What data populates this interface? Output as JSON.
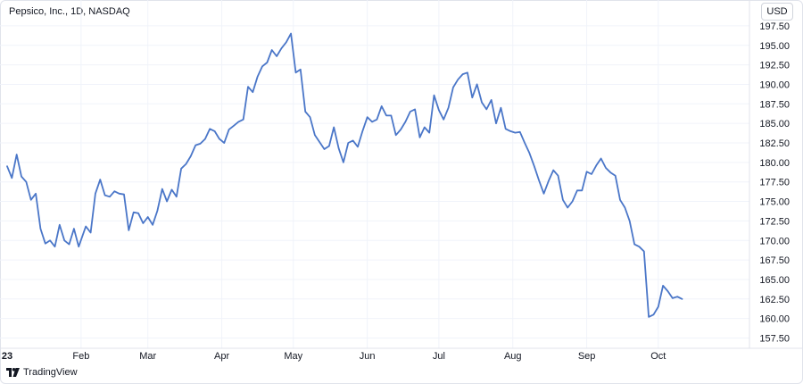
{
  "header": {
    "title": "Pepsico, Inc., 1D, NASDAQ",
    "currency": "USD"
  },
  "footer": {
    "brand": "TradingView",
    "logo_icon": "tradingview-logo-icon"
  },
  "colors": {
    "line": "#4a76c8",
    "grid": "#f0f3fa",
    "axis_text": "#131722",
    "border": "#e0e3eb"
  },
  "chart_data": {
    "type": "line",
    "title": "",
    "xlabel": "",
    "ylabel": "",
    "ylim": [
      156.5,
      198.5
    ],
    "y_ticks": [
      157.5,
      160,
      162.5,
      165,
      167.5,
      170,
      172.5,
      175,
      177.5,
      180,
      182.5,
      185,
      187.5,
      190,
      192.5,
      195,
      197.5
    ],
    "y_tick_labels": [
      "157.50",
      "160.00",
      "162.50",
      "165.00",
      "167.50",
      "170.00",
      "172.50",
      "175.00",
      "177.50",
      "180.00",
      "182.50",
      "185.00",
      "187.50",
      "190.00",
      "192.50",
      "195.00",
      "197.50"
    ],
    "x_ticks": [
      {
        "label": "23",
        "date": "2023-01-01",
        "bold": true
      },
      {
        "label": "Feb",
        "date": "2023-02-01",
        "bold": false
      },
      {
        "label": "Mar",
        "date": "2023-03-01",
        "bold": false
      },
      {
        "label": "Apr",
        "date": "2023-04-01",
        "bold": false
      },
      {
        "label": "May",
        "date": "2023-05-01",
        "bold": false
      },
      {
        "label": "Jun",
        "date": "2023-06-01",
        "bold": false
      },
      {
        "label": "Jul",
        "date": "2023-07-01",
        "bold": false
      },
      {
        "label": "Aug",
        "date": "2023-08-01",
        "bold": false
      },
      {
        "label": "Sep",
        "date": "2023-09-01",
        "bold": false
      },
      {
        "label": "Oct",
        "date": "2023-10-01",
        "bold": false
      }
    ],
    "x_range": [
      "2023-01-01",
      "2023-10-31"
    ],
    "grid": true,
    "legend": "none",
    "series": [
      {
        "x": [
          "2023-01-01",
          "2023-01-03",
          "2023-01-05",
          "2023-01-07",
          "2023-01-09",
          "2023-01-11",
          "2023-01-13",
          "2023-01-15",
          "2023-01-17",
          "2023-01-19",
          "2023-01-21",
          "2023-01-23",
          "2023-01-25",
          "2023-01-27",
          "2023-01-29",
          "2023-01-31",
          "2023-02-03",
          "2023-02-05",
          "2023-02-07",
          "2023-02-09",
          "2023-02-11",
          "2023-02-13",
          "2023-02-15",
          "2023-02-17",
          "2023-02-19",
          "2023-02-21",
          "2023-02-23",
          "2023-02-25",
          "2023-02-27",
          "2023-03-01",
          "2023-03-03",
          "2023-03-05",
          "2023-03-07",
          "2023-03-09",
          "2023-03-11",
          "2023-03-13",
          "2023-03-15",
          "2023-03-17",
          "2023-03-19",
          "2023-03-21",
          "2023-03-23",
          "2023-03-25",
          "2023-03-27",
          "2023-03-29",
          "2023-03-31",
          "2023-04-02",
          "2023-04-04",
          "2023-04-06",
          "2023-04-08",
          "2023-04-10",
          "2023-04-12",
          "2023-04-14",
          "2023-04-16",
          "2023-04-18",
          "2023-04-20",
          "2023-04-22",
          "2023-04-24",
          "2023-04-26",
          "2023-04-28",
          "2023-04-30",
          "2023-05-02",
          "2023-05-04",
          "2023-05-06",
          "2023-05-08",
          "2023-05-10",
          "2023-05-12",
          "2023-05-14",
          "2023-05-16",
          "2023-05-18",
          "2023-05-20",
          "2023-05-22",
          "2023-05-24",
          "2023-05-26",
          "2023-05-28",
          "2023-05-30",
          "2023-06-01",
          "2023-06-03",
          "2023-06-05",
          "2023-06-07",
          "2023-06-09",
          "2023-06-11",
          "2023-06-13",
          "2023-06-15",
          "2023-06-17",
          "2023-06-19",
          "2023-06-21",
          "2023-06-23",
          "2023-06-25",
          "2023-06-27",
          "2023-06-29",
          "2023-07-01",
          "2023-07-03",
          "2023-07-05",
          "2023-07-07",
          "2023-07-09",
          "2023-07-11",
          "2023-07-13",
          "2023-07-15",
          "2023-07-17",
          "2023-07-19",
          "2023-07-21",
          "2023-07-23",
          "2023-07-25",
          "2023-07-27",
          "2023-07-29",
          "2023-07-31",
          "2023-08-02",
          "2023-08-04",
          "2023-08-06",
          "2023-08-08",
          "2023-08-10",
          "2023-08-12",
          "2023-08-14",
          "2023-08-16",
          "2023-08-18",
          "2023-08-20",
          "2023-08-22",
          "2023-08-24",
          "2023-08-26",
          "2023-08-28",
          "2023-08-30",
          "2023-09-01",
          "2023-09-03",
          "2023-09-05",
          "2023-09-07",
          "2023-09-09",
          "2023-09-11",
          "2023-09-13",
          "2023-09-15",
          "2023-09-17",
          "2023-09-19",
          "2023-09-21",
          "2023-09-23",
          "2023-09-25",
          "2023-09-27",
          "2023-09-29",
          "2023-10-01",
          "2023-10-03",
          "2023-10-05",
          "2023-10-07",
          "2023-10-09",
          "2023-10-11"
        ],
        "values": [
          179.5,
          178.0,
          181.0,
          178.2,
          177.5,
          175.2,
          176.0,
          171.5,
          169.6,
          170.0,
          169.2,
          172.0,
          170.0,
          169.5,
          171.5,
          169.2,
          171.8,
          171.0,
          176.0,
          177.8,
          175.8,
          175.6,
          176.3,
          176.0,
          175.9,
          171.3,
          173.6,
          173.5,
          172.2,
          173.0,
          172.0,
          173.8,
          176.6,
          175.0,
          176.5,
          175.6,
          179.2,
          179.8,
          180.8,
          182.2,
          182.4,
          183.0,
          184.3,
          184.0,
          183.0,
          182.5,
          184.2,
          184.7,
          185.2,
          185.5,
          189.7,
          189.0,
          191.0,
          192.3,
          192.8,
          194.4,
          193.6,
          194.6,
          195.4,
          196.5,
          191.5,
          191.9,
          186.5,
          185.8,
          183.5,
          182.6,
          181.7,
          182.1,
          184.5,
          181.8,
          180.0,
          182.5,
          182.8,
          182.0,
          184.0,
          185.8,
          185.2,
          185.5,
          187.2,
          186.0,
          186.0,
          183.5,
          184.2,
          185.2,
          186.5,
          186.8,
          183.2,
          184.5,
          183.8,
          188.6,
          186.7,
          185.5,
          187.0,
          189.6,
          190.6,
          191.3,
          191.5,
          188.3,
          190.0,
          187.7,
          186.8,
          188.0,
          185.0,
          187.0,
          184.3,
          184.0,
          183.8,
          183.9,
          182.5,
          181.2,
          179.5,
          177.7,
          176.0,
          177.6,
          179.0,
          178.3,
          175.2,
          174.2,
          175.0,
          176.4,
          176.4,
          178.8,
          178.5,
          179.6,
          180.5,
          179.3,
          178.7,
          178.3,
          175.2,
          174.2,
          172.5,
          169.5,
          169.2,
          168.6,
          160.2,
          160.5,
          161.5,
          164.2,
          163.5,
          162.6,
          162.8,
          162.5
        ]
      }
    ]
  }
}
